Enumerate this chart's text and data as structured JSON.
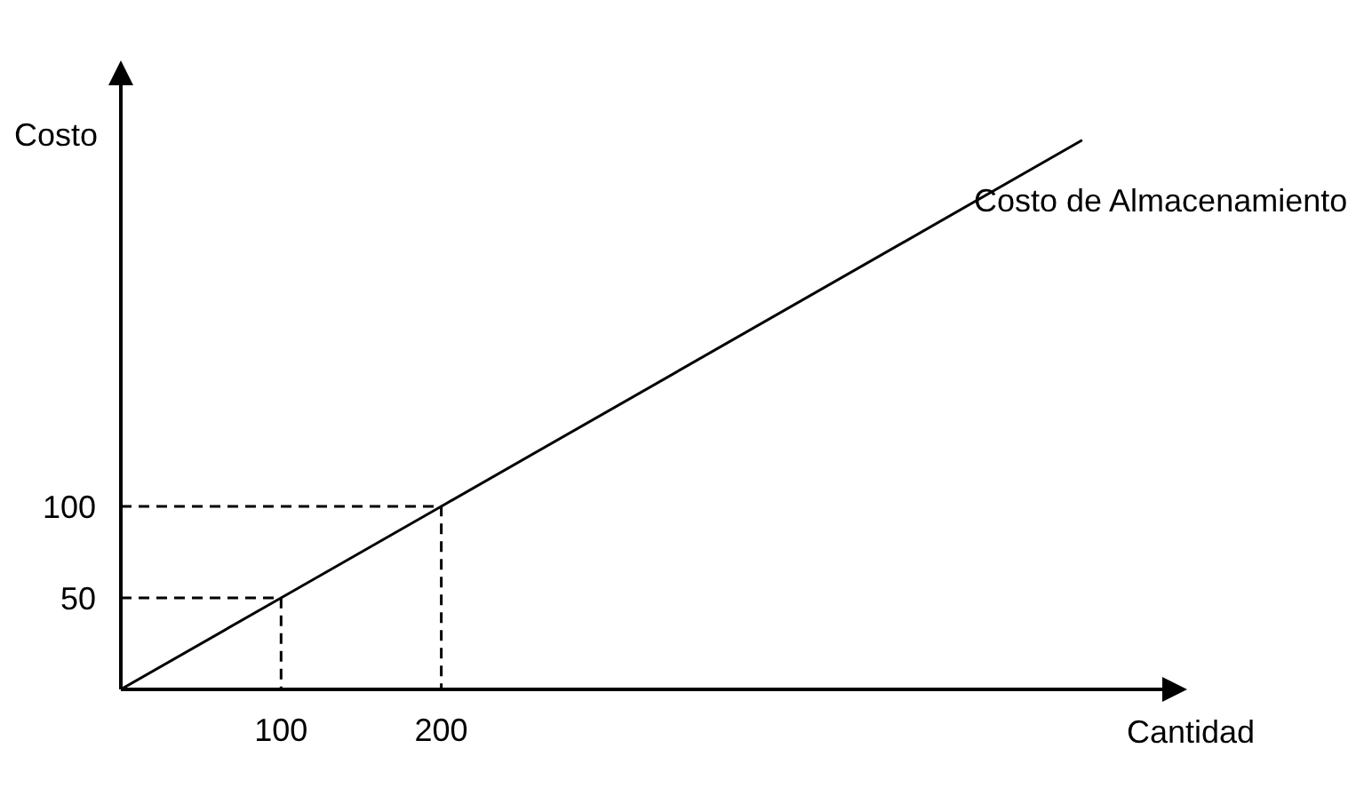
{
  "chart_data": {
    "type": "line",
    "xlabel": "Cantidad",
    "ylabel": "Costo",
    "annotations": [
      "Costo de Almacenamiento"
    ],
    "series": [
      {
        "color": "#000000",
        "x": [
          0,
          100,
          200,
          600
        ],
        "values": [
          0,
          50,
          100,
          300
        ],
        "line_style": "solid"
      },
      {
        "color": "#000000",
        "x": [
          0,
          100,
          100
        ],
        "values": [
          50,
          50,
          0
        ],
        "line_style": "dashed"
      },
      {
        "color": "#000000",
        "x": [
          0,
          200,
          200
        ],
        "values": [
          100,
          100,
          0
        ],
        "line_style": "dashed"
      }
    ],
    "xlim": [
      0,
      650
    ],
    "ylim": [
      0,
      330
    ],
    "xticks": [
      100,
      200
    ],
    "yticks": [
      50,
      100
    ],
    "grid": false,
    "marker": "none"
  }
}
